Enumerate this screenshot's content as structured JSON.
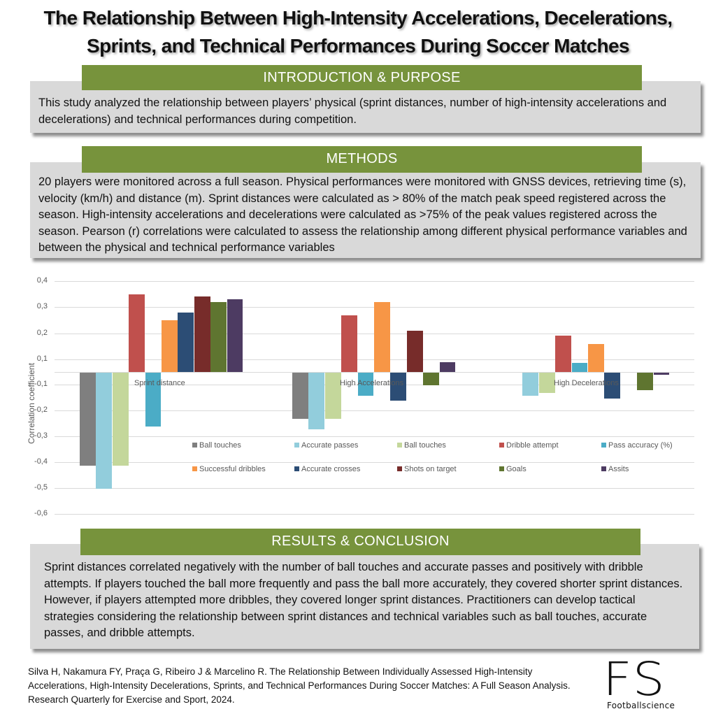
{
  "title": {
    "line1": "The Relationship Between High-Intensity Accelerations, Decelerations,",
    "line2": "Sprints, and Technical Performances During Soccer Matches"
  },
  "introduction": {
    "header": "INTRODUCTION & PURPOSE",
    "text": "This study analyzed the relationship between players’ physical (sprint distances, number of high-intensity accelerations and decelerations) and technical performances during competition."
  },
  "methods": {
    "header": "METHODS",
    "text": "20 players were monitored across a full season. Physical performances were monitored with GNSS devices, retrieving time (s), velocity (km/h) and distance (m). Sprint distances were calculated as > 80% of the match peak speed registered across the season. High-intensity accelerations and decelerations were calculated as >75% of the peak values registered across the season. Pearson (r) correlations were calculated to assess the relationship among different physical performance variables and between the physical and technical performance variables"
  },
  "results": {
    "header": "RESULTS & CONCLUSION",
    "text": "Sprint distances correlated negatively with the number of ball touches and accurate passes and positively with dribble attempts. If players touched the ball more frequently and pass the ball more accurately, they covered shorter sprint distances. However, if players attempted more dribbles, they covered longer sprint distances. Practitioners can develop tactical strategies considering the relationship between sprint distances and technical variables such as ball touches, accurate passes, and dribble attempts."
  },
  "citation": {
    "text": "Silva H, Nakamura FY, Praça G, Ribeiro J & Marcelino R. The Relationship Between Individually Assessed High-Intensity Accelerations, High-Intensity Decelerations, Sprints, and Technical Performances During Soccer Matches: A Full Season Analysis. Research Quarterly for Exercise and Sport, 2024."
  },
  "logo": {
    "mark": "FS",
    "name": "Footballscience"
  },
  "chart_data": {
    "type": "bar",
    "title": "",
    "xlabel": "",
    "ylabel": "Correlation coefficient",
    "ylim": [
      -0.6,
      0.4
    ],
    "y_ticks": [
      "0,4",
      "0,3",
      "0,2",
      "0,1",
      "-0,1",
      "-0,2",
      "-0,3",
      "-0,4",
      "-0,5",
      "-0,6"
    ],
    "grid": true,
    "legend_position": "inside-bottom-right",
    "categories": [
      "Sprint distance",
      "High Accelerations",
      "High Decelerations"
    ],
    "series": [
      {
        "name": "Ball touches",
        "color": "#7f7f7f",
        "values": [
          -0.41,
          -0.23,
          null
        ]
      },
      {
        "name": "Accurate passes",
        "color": "#92cddc",
        "values": [
          -0.5,
          -0.27,
          -0.14
        ]
      },
      {
        "name": "Ball touches",
        "color": "#c4d79b",
        "values": [
          -0.41,
          -0.23,
          -0.13
        ]
      },
      {
        "name": "Dribble attempt",
        "color": "#c0504d",
        "values": [
          0.35,
          0.27,
          0.19
        ]
      },
      {
        "name": "Pass accuracy (%)",
        "color": "#4bacc6",
        "values": [
          -0.26,
          -0.14,
          0.07
        ]
      },
      {
        "name": "Successful dribbles",
        "color": "#f79646",
        "values": [
          0.25,
          0.32,
          0.16
        ]
      },
      {
        "name": "Accurate crosses",
        "color": "#2c4d75",
        "values": [
          0.28,
          -0.16,
          -0.15
        ]
      },
      {
        "name": "Shots on target",
        "color": "#772c2a",
        "values": [
          0.34,
          0.21,
          null
        ]
      },
      {
        "name": "Goals",
        "color": "#5f7530",
        "values": [
          0.32,
          -0.1,
          -0.12
        ]
      },
      {
        "name": "Assits",
        "color": "#4d3b62",
        "values": [
          0.33,
          0.08,
          -0.01
        ]
      }
    ]
  }
}
